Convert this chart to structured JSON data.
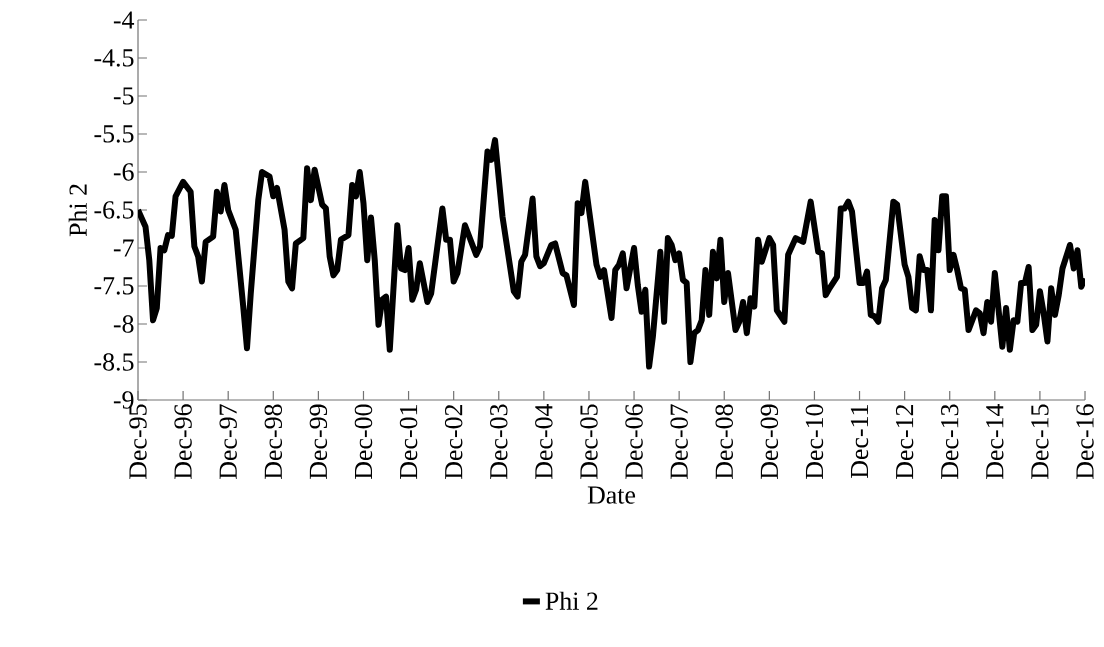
{
  "chart_data": {
    "type": "line",
    "xlabel": "Date",
    "ylabel": "Phi 2",
    "x": [
      "1995-12",
      "1996-02",
      "1996-03",
      "1996-04",
      "1996-05",
      "1996-06",
      "1996-07",
      "1996-08",
      "1996-09",
      "1996-10",
      "1996-12",
      "1997-02",
      "1997-03",
      "1997-04",
      "1997-05",
      "1997-06",
      "1997-08",
      "1997-09",
      "1997-10",
      "1997-11",
      "1997-12",
      "1998-02",
      "1998-04",
      "1998-05",
      "1998-06",
      "1998-08",
      "1998-09",
      "1998-11",
      "1998-12",
      "1999-01",
      "1999-03",
      "1999-04",
      "1999-05",
      "1999-06",
      "1999-08",
      "1999-09",
      "1999-10",
      "1999-11",
      "2000-01",
      "2000-02",
      "2000-03",
      "2000-04",
      "2000-05",
      "2000-06",
      "2000-08",
      "2000-09",
      "2000-10",
      "2000-11",
      "2000-12",
      "2001-01",
      "2001-02",
      "2001-03",
      "2001-04",
      "2001-05",
      "2001-06",
      "2001-07",
      "2001-09",
      "2001-10",
      "2001-11",
      "2001-12",
      "2002-01",
      "2002-02",
      "2002-03",
      "2002-05",
      "2002-06",
      "2002-09",
      "2002-10",
      "2002-11",
      "2002-12",
      "2003-01",
      "2003-03",
      "2003-06",
      "2003-07",
      "2003-09",
      "2003-10",
      "2003-11",
      "2004-01",
      "2004-04",
      "2004-05",
      "2004-06",
      "2004-07",
      "2004-09",
      "2004-10",
      "2004-11",
      "2004-12",
      "2005-02",
      "2005-03",
      "2005-05",
      "2005-06",
      "2005-08",
      "2005-09",
      "2005-10",
      "2005-11",
      "2006-02",
      "2006-03",
      "2006-04",
      "2006-06",
      "2006-07",
      "2006-08",
      "2006-09",
      "2006-10",
      "2006-12",
      "2007-01",
      "2007-02",
      "2007-03",
      "2007-04",
      "2007-05",
      "2007-07",
      "2007-08",
      "2007-09",
      "2007-10",
      "2007-11",
      "2007-12",
      "2008-01",
      "2008-02",
      "2008-03",
      "2008-04",
      "2008-05",
      "2008-06",
      "2008-07",
      "2008-08",
      "2008-09",
      "2008-10",
      "2008-11",
      "2008-12",
      "2009-01",
      "2009-03",
      "2009-04",
      "2009-05",
      "2009-06",
      "2009-07",
      "2009-08",
      "2009-09",
      "2009-10",
      "2009-12",
      "2010-01",
      "2010-02",
      "2010-04",
      "2010-05",
      "2010-07",
      "2010-09",
      "2010-11",
      "2011-01",
      "2011-02",
      "2011-03",
      "2011-04",
      "2011-06",
      "2011-07",
      "2011-08",
      "2011-09",
      "2011-10",
      "2011-12",
      "2012-01",
      "2012-02",
      "2012-03",
      "2012-04",
      "2012-05",
      "2012-06",
      "2012-07",
      "2012-09",
      "2012-10",
      "2012-12",
      "2013-01",
      "2013-02",
      "2013-03",
      "2013-04",
      "2013-05",
      "2013-06",
      "2013-07",
      "2013-08",
      "2013-09",
      "2013-10",
      "2013-11",
      "2013-12",
      "2014-01",
      "2014-02",
      "2014-03",
      "2014-04",
      "2014-05",
      "2014-07",
      "2014-08",
      "2014-09",
      "2014-10",
      "2014-11",
      "2014-12",
      "2015-02",
      "2015-03",
      "2015-04",
      "2015-05",
      "2015-06",
      "2015-07",
      "2015-08",
      "2015-09",
      "2015-10",
      "2015-11",
      "2015-12",
      "2016-01",
      "2016-02",
      "2016-03",
      "2016-04",
      "2016-05",
      "2016-06",
      "2016-08",
      "2016-09",
      "2016-10",
      "2016-11",
      "2016-12"
    ],
    "series": [
      {
        "name": "Phi 2",
        "color": "#000000",
        "values": [
          -6.5,
          -6.72,
          -7.16,
          -7.95,
          -7.79,
          -7.0,
          -7.03,
          -6.83,
          -6.84,
          -6.32,
          -6.13,
          -6.26,
          -6.98,
          -7.11,
          -7.44,
          -6.92,
          -6.85,
          -6.26,
          -6.52,
          -6.17,
          -6.5,
          -6.76,
          -7.77,
          -8.32,
          -7.6,
          -6.37,
          -6.0,
          -6.06,
          -6.32,
          -6.21,
          -6.76,
          -7.44,
          -7.53,
          -6.94,
          -6.87,
          -5.95,
          -6.37,
          -5.97,
          -6.43,
          -6.48,
          -7.11,
          -7.36,
          -7.29,
          -6.89,
          -6.83,
          -6.17,
          -6.32,
          -6.0,
          -6.41,
          -7.16,
          -6.6,
          -7.16,
          -8.01,
          -7.68,
          -7.64,
          -8.34,
          -6.7,
          -7.27,
          -7.29,
          -7.0,
          -7.68,
          -7.55,
          -7.2,
          -7.71,
          -7.6,
          -6.48,
          -6.89,
          -6.89,
          -7.44,
          -7.33,
          -6.7,
          -7.09,
          -6.98,
          -5.73,
          -5.84,
          -5.58,
          -6.59,
          -7.57,
          -7.64,
          -7.18,
          -7.09,
          -6.35,
          -7.11,
          -7.24,
          -7.2,
          -6.96,
          -6.94,
          -7.33,
          -7.36,
          -7.75,
          -6.41,
          -6.54,
          -6.13,
          -7.22,
          -7.38,
          -7.29,
          -7.92,
          -7.29,
          -7.22,
          -7.07,
          -7.53,
          -7.0,
          -7.49,
          -7.84,
          -7.55,
          -8.56,
          -8.17,
          -7.05,
          -7.97,
          -6.87,
          -6.96,
          -7.16,
          -7.07,
          -7.42,
          -7.46,
          -8.5,
          -8.12,
          -8.08,
          -7.95,
          -7.29,
          -7.88,
          -7.05,
          -7.4,
          -6.89,
          -7.71,
          -7.33,
          -8.08,
          -7.97,
          -7.71,
          -8.12,
          -7.66,
          -7.77,
          -6.89,
          -7.18,
          -6.87,
          -6.96,
          -7.82,
          -7.97,
          -7.09,
          -6.87,
          -6.92,
          -6.39,
          -7.05,
          -7.07,
          -7.62,
          -7.53,
          -7.38,
          -6.48,
          -6.48,
          -6.39,
          -6.52,
          -7.46,
          -7.46,
          -7.31,
          -7.88,
          -7.9,
          -7.97,
          -7.53,
          -7.42,
          -6.39,
          -6.43,
          -7.22,
          -7.38,
          -7.79,
          -7.82,
          -7.11,
          -7.29,
          -7.29,
          -7.82,
          -6.63,
          -7.03,
          -6.32,
          -6.32,
          -7.29,
          -7.09,
          -7.29,
          -7.53,
          -7.55,
          -8.08,
          -7.82,
          -7.86,
          -8.12,
          -7.71,
          -7.97,
          -7.33,
          -8.3,
          -7.79,
          -8.34,
          -7.95,
          -7.97,
          -7.46,
          -7.46,
          -7.25,
          -8.08,
          -8.01,
          -7.57,
          -7.86,
          -8.23,
          -7.53,
          -7.88,
          -7.62,
          -7.27,
          -6.96,
          -7.27,
          -7.03,
          -7.51,
          -7.4
        ]
      }
    ],
    "xlim": [
      "1995-12",
      "2016-12"
    ],
    "xticks": [
      {
        "value": "1995-12",
        "label": "Dec-95"
      },
      {
        "value": "1996-12",
        "label": "Dec-96"
      },
      {
        "value": "1997-12",
        "label": "Dec-97"
      },
      {
        "value": "1998-12",
        "label": "Dec-98"
      },
      {
        "value": "1999-12",
        "label": "Dec-99"
      },
      {
        "value": "2000-12",
        "label": "Dec-00"
      },
      {
        "value": "2001-12",
        "label": "Dec-01"
      },
      {
        "value": "2002-12",
        "label": "Dec-02"
      },
      {
        "value": "2003-12",
        "label": "Dec-03"
      },
      {
        "value": "2004-12",
        "label": "Dec-04"
      },
      {
        "value": "2005-12",
        "label": "Dec-05"
      },
      {
        "value": "2006-12",
        "label": "Dec-06"
      },
      {
        "value": "2007-12",
        "label": "Dec-07"
      },
      {
        "value": "2008-12",
        "label": "Dec-08"
      },
      {
        "value": "2009-12",
        "label": "Dec-09"
      },
      {
        "value": "2010-12",
        "label": "Dec-10"
      },
      {
        "value": "2011-12",
        "label": "Dec-11"
      },
      {
        "value": "2012-12",
        "label": "Dec-12"
      },
      {
        "value": "2013-12",
        "label": "Dec-13"
      },
      {
        "value": "2014-12",
        "label": "Dec-14"
      },
      {
        "value": "2015-12",
        "label": "Dec-15"
      },
      {
        "value": "2016-12",
        "label": "Dec-16"
      }
    ],
    "ylim": [
      -9,
      -4
    ],
    "yticks": [
      -9,
      -8.5,
      -8,
      -7.5,
      -7,
      -6.5,
      -6,
      -5.5,
      -5,
      -4.5,
      -4
    ],
    "legend": "bottom",
    "marker": "none",
    "line_style": "solid"
  }
}
